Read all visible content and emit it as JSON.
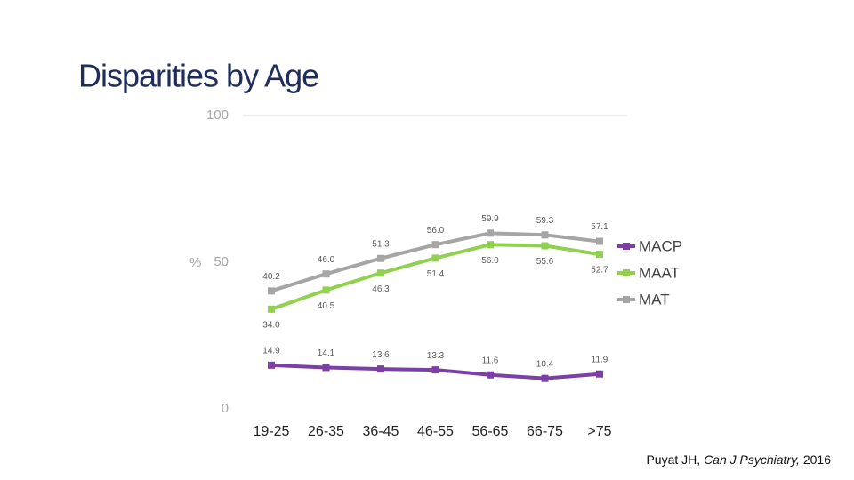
{
  "chart_data": {
    "type": "line",
    "title": "Disparities by Age",
    "ylabel": "%",
    "categories": [
      "19-25",
      "26-35",
      "36-45",
      "46-55",
      "56-65",
      "66-75",
      ">75"
    ],
    "series": [
      {
        "name": "MACP",
        "color": "#7b3fa6",
        "values": [
          14.9,
          14.1,
          13.6,
          13.3,
          11.6,
          10.4,
          11.9
        ],
        "value_labels": [
          "14.9",
          "14.1",
          "13.6",
          "13.3",
          "11.6",
          "10.4",
          "11.9"
        ]
      },
      {
        "name": "MAAT",
        "color": "#92d050",
        "values": [
          34.0,
          40.5,
          46.3,
          51.4,
          56.0,
          55.6,
          52.7
        ],
        "value_labels": [
          "34.0",
          "40.5",
          "46.3",
          "51.4",
          "56.0",
          "55.6",
          "52.7"
        ]
      },
      {
        "name": "MAT",
        "color": "#a5a5a5",
        "values": [
          40.2,
          46.0,
          51.3,
          56.0,
          59.9,
          59.3,
          57.1
        ],
        "value_labels": [
          "40.2",
          "46.0",
          "51.3",
          "56.0",
          "59.9",
          "59.3",
          "57.1"
        ]
      }
    ],
    "ylim": [
      0,
      100
    ],
    "yticks": [
      0,
      50,
      100
    ],
    "legend": "right",
    "citation": {
      "author": "Puyat JH,",
      "journal": "Can J Psychiatry,",
      "year": "2016"
    }
  }
}
